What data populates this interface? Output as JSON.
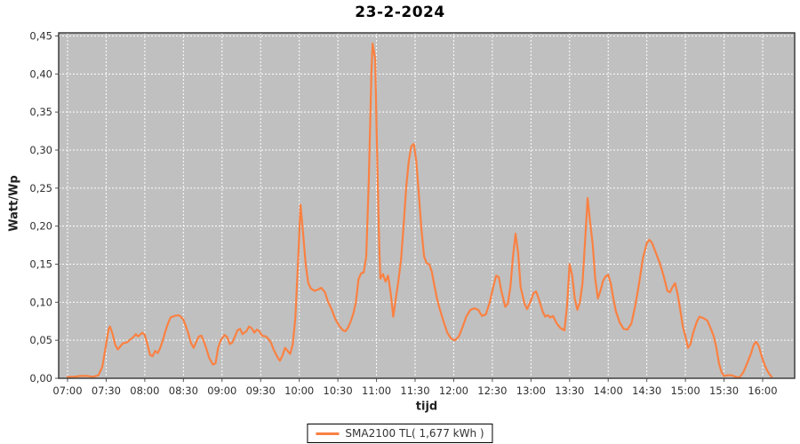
{
  "title": "23-2-2024",
  "legend": {
    "label": "SMA2100 TL( 1,677 kWh )"
  },
  "colors": {
    "series": "#fa8142",
    "plot_background": "#c0c0c0",
    "gridline": "#ffffff",
    "plot_border": "#333333",
    "tick_mark": "#555555",
    "tick_label": "#2f2f2f",
    "outer_background": "#ffffff"
  },
  "chart_data": {
    "type": "line",
    "title": "23-2-2024",
    "xlabel": "tijd",
    "ylabel": "Watt/Wp",
    "ylim": [
      0.0,
      0.45
    ],
    "grid": true,
    "legend_position": "bottom",
    "x_ticks": [
      "07:00",
      "07:30",
      "08:00",
      "08:30",
      "09:00",
      "09:30",
      "10:00",
      "10:30",
      "11:00",
      "11:30",
      "12:00",
      "12:30",
      "13:00",
      "13:30",
      "14:00",
      "14:30",
      "15:00",
      "15:30",
      "16:00"
    ],
    "y_ticks": [
      0.0,
      0.05,
      0.1,
      0.15,
      0.2,
      0.25,
      0.3,
      0.35,
      0.4,
      0.45
    ],
    "y_tick_labels": [
      "0,00",
      "0,05",
      "0,10",
      "0,15",
      "0,20",
      "0,25",
      "0,30",
      "0,35",
      "0,40",
      "0,45"
    ],
    "series": [
      {
        "name": "SMA2100 TL( 1,677 kWh )",
        "color": "#fa8142",
        "points": [
          [
            "07:00",
            0.002
          ],
          [
            "07:05",
            0.002
          ],
          [
            "07:10",
            0.003
          ],
          [
            "07:15",
            0.003
          ],
          [
            "07:20",
            0.002
          ],
          [
            "07:24",
            0.004
          ],
          [
            "07:27",
            0.015
          ],
          [
            "07:30",
            0.045
          ],
          [
            "07:32",
            0.065
          ],
          [
            "07:33",
            0.068
          ],
          [
            "07:35",
            0.058
          ],
          [
            "07:37",
            0.044
          ],
          [
            "07:39",
            0.038
          ],
          [
            "07:41",
            0.042
          ],
          [
            "07:43",
            0.046
          ],
          [
            "07:46",
            0.047
          ],
          [
            "07:48",
            0.05
          ],
          [
            "07:51",
            0.054
          ],
          [
            "07:53",
            0.058
          ],
          [
            "07:55",
            0.055
          ],
          [
            "07:58",
            0.06
          ],
          [
            "08:00",
            0.057
          ],
          [
            "08:02",
            0.045
          ],
          [
            "08:04",
            0.031
          ],
          [
            "08:06",
            0.029
          ],
          [
            "08:08",
            0.036
          ],
          [
            "08:10",
            0.033
          ],
          [
            "08:12",
            0.04
          ],
          [
            "08:14",
            0.05
          ],
          [
            "08:16",
            0.062
          ],
          [
            "08:18",
            0.072
          ],
          [
            "08:20",
            0.08
          ],
          [
            "08:23",
            0.082
          ],
          [
            "08:26",
            0.083
          ],
          [
            "08:28",
            0.081
          ],
          [
            "08:30",
            0.077
          ],
          [
            "08:32",
            0.068
          ],
          [
            "08:34",
            0.058
          ],
          [
            "08:36",
            0.046
          ],
          [
            "08:38",
            0.04
          ],
          [
            "08:40",
            0.048
          ],
          [
            "08:42",
            0.055
          ],
          [
            "08:44",
            0.056
          ],
          [
            "08:46",
            0.048
          ],
          [
            "08:48",
            0.038
          ],
          [
            "08:50",
            0.027
          ],
          [
            "08:53",
            0.018
          ],
          [
            "08:55",
            0.02
          ],
          [
            "08:57",
            0.04
          ],
          [
            "08:59",
            0.05
          ],
          [
            "09:02",
            0.057
          ],
          [
            "09:04",
            0.054
          ],
          [
            "09:06",
            0.045
          ],
          [
            "09:08",
            0.047
          ],
          [
            "09:10",
            0.055
          ],
          [
            "09:12",
            0.063
          ],
          [
            "09:14",
            0.065
          ],
          [
            "09:16",
            0.058
          ],
          [
            "09:19",
            0.062
          ],
          [
            "09:21",
            0.068
          ],
          [
            "09:23",
            0.066
          ],
          [
            "09:25",
            0.06
          ],
          [
            "09:27",
            0.064
          ],
          [
            "09:29",
            0.062
          ],
          [
            "09:31",
            0.056
          ],
          [
            "09:34",
            0.055
          ],
          [
            "09:36",
            0.052
          ],
          [
            "09:38",
            0.047
          ],
          [
            "09:40",
            0.038
          ],
          [
            "09:43",
            0.028
          ],
          [
            "09:45",
            0.023
          ],
          [
            "09:47",
            0.03
          ],
          [
            "09:49",
            0.04
          ],
          [
            "09:51",
            0.036
          ],
          [
            "09:53",
            0.032
          ],
          [
            "09:55",
            0.045
          ],
          [
            "09:57",
            0.08
          ],
          [
            "09:59",
            0.15
          ],
          [
            "10:01",
            0.228
          ],
          [
            "10:03",
            0.19
          ],
          [
            "10:05",
            0.15
          ],
          [
            "10:07",
            0.125
          ],
          [
            "10:09",
            0.118
          ],
          [
            "10:12",
            0.115
          ],
          [
            "10:15",
            0.117
          ],
          [
            "10:17",
            0.119
          ],
          [
            "10:20",
            0.113
          ],
          [
            "10:22",
            0.102
          ],
          [
            "10:25",
            0.091
          ],
          [
            "10:28",
            0.078
          ],
          [
            "10:31",
            0.069
          ],
          [
            "10:34",
            0.063
          ],
          [
            "10:36",
            0.062
          ],
          [
            "10:38",
            0.067
          ],
          [
            "10:40",
            0.075
          ],
          [
            "10:42",
            0.085
          ],
          [
            "10:44",
            0.1
          ],
          [
            "10:46",
            0.13
          ],
          [
            "10:48",
            0.138
          ],
          [
            "10:50",
            0.139
          ],
          [
            "10:52",
            0.16
          ],
          [
            "10:54",
            0.26
          ],
          [
            "10:56",
            0.4
          ],
          [
            "10:57",
            0.44
          ],
          [
            "10:59",
            0.42
          ],
          [
            "11:00",
            0.33
          ],
          [
            "11:02",
            0.18
          ],
          [
            "11:03",
            0.131
          ],
          [
            "11:05",
            0.137
          ],
          [
            "11:07",
            0.127
          ],
          [
            "11:09",
            0.135
          ],
          [
            "11:11",
            0.112
          ],
          [
            "11:13",
            0.081
          ],
          [
            "11:15",
            0.105
          ],
          [
            "11:17",
            0.128
          ],
          [
            "11:19",
            0.155
          ],
          [
            "11:21",
            0.2
          ],
          [
            "11:23",
            0.25
          ],
          [
            "11:25",
            0.285
          ],
          [
            "11:27",
            0.305
          ],
          [
            "11:29",
            0.308
          ],
          [
            "11:31",
            0.285
          ],
          [
            "11:33",
            0.24
          ],
          [
            "11:35",
            0.195
          ],
          [
            "11:37",
            0.16
          ],
          [
            "11:39",
            0.151
          ],
          [
            "11:41",
            0.15
          ],
          [
            "11:43",
            0.14
          ],
          [
            "11:45",
            0.122
          ],
          [
            "11:47",
            0.105
          ],
          [
            "11:49",
            0.092
          ],
          [
            "11:52",
            0.075
          ],
          [
            "11:55",
            0.06
          ],
          [
            "11:58",
            0.052
          ],
          [
            "12:01",
            0.05
          ],
          [
            "12:04",
            0.055
          ],
          [
            "12:07",
            0.068
          ],
          [
            "12:10",
            0.082
          ],
          [
            "12:13",
            0.09
          ],
          [
            "12:16",
            0.092
          ],
          [
            "12:19",
            0.09
          ],
          [
            "12:22",
            0.082
          ],
          [
            "12:25",
            0.084
          ],
          [
            "12:28",
            0.1
          ],
          [
            "12:31",
            0.122
          ],
          [
            "12:33",
            0.135
          ],
          [
            "12:35",
            0.133
          ],
          [
            "12:37",
            0.115
          ],
          [
            "12:40",
            0.094
          ],
          [
            "12:42",
            0.098
          ],
          [
            "12:44",
            0.12
          ],
          [
            "12:46",
            0.16
          ],
          [
            "12:48",
            0.19
          ],
          [
            "12:50",
            0.165
          ],
          [
            "12:52",
            0.12
          ],
          [
            "12:55",
            0.098
          ],
          [
            "12:57",
            0.091
          ],
          [
            "13:00",
            0.102
          ],
          [
            "13:02",
            0.112
          ],
          [
            "13:04",
            0.114
          ],
          [
            "13:06",
            0.105
          ],
          [
            "13:09",
            0.088
          ],
          [
            "13:11",
            0.081
          ],
          [
            "13:13",
            0.083
          ],
          [
            "13:15",
            0.08
          ],
          [
            "13:17",
            0.082
          ],
          [
            "13:20",
            0.072
          ],
          [
            "13:23",
            0.066
          ],
          [
            "13:26",
            0.063
          ],
          [
            "13:28",
            0.095
          ],
          [
            "13:30",
            0.15
          ],
          [
            "13:32",
            0.135
          ],
          [
            "13:34",
            0.105
          ],
          [
            "13:36",
            0.09
          ],
          [
            "13:38",
            0.1
          ],
          [
            "13:40",
            0.125
          ],
          [
            "13:42",
            0.18
          ],
          [
            "13:44",
            0.237
          ],
          [
            "13:46",
            0.205
          ],
          [
            "13:48",
            0.176
          ],
          [
            "13:50",
            0.13
          ],
          [
            "13:52",
            0.105
          ],
          [
            "13:54",
            0.115
          ],
          [
            "13:56",
            0.128
          ],
          [
            "13:58",
            0.134
          ],
          [
            "14:00",
            0.136
          ],
          [
            "14:02",
            0.125
          ],
          [
            "14:04",
            0.105
          ],
          [
            "14:06",
            0.088
          ],
          [
            "14:09",
            0.073
          ],
          [
            "14:12",
            0.065
          ],
          [
            "14:15",
            0.064
          ],
          [
            "14:18",
            0.072
          ],
          [
            "14:21",
            0.095
          ],
          [
            "14:24",
            0.125
          ],
          [
            "14:27",
            0.158
          ],
          [
            "14:30",
            0.178
          ],
          [
            "14:32",
            0.182
          ],
          [
            "14:34",
            0.178
          ],
          [
            "14:37",
            0.165
          ],
          [
            "14:40",
            0.152
          ],
          [
            "14:43",
            0.135
          ],
          [
            "14:46",
            0.115
          ],
          [
            "14:48",
            0.113
          ],
          [
            "14:50",
            0.12
          ],
          [
            "14:52",
            0.125
          ],
          [
            "14:54",
            0.11
          ],
          [
            "14:56",
            0.09
          ],
          [
            "14:58",
            0.068
          ],
          [
            "15:00",
            0.055
          ],
          [
            "15:02",
            0.04
          ],
          [
            "15:04",
            0.045
          ],
          [
            "15:06",
            0.06
          ],
          [
            "15:09",
            0.075
          ],
          [
            "15:11",
            0.081
          ],
          [
            "15:14",
            0.079
          ],
          [
            "15:17",
            0.076
          ],
          [
            "15:20",
            0.064
          ],
          [
            "15:22",
            0.055
          ],
          [
            "15:24",
            0.04
          ],
          [
            "15:26",
            0.02
          ],
          [
            "15:28",
            0.008
          ],
          [
            "15:30",
            0.003
          ],
          [
            "15:33",
            0.004
          ],
          [
            "15:36",
            0.004
          ],
          [
            "15:39",
            0.002
          ],
          [
            "15:42",
            0.001
          ],
          [
            "15:45",
            0.008
          ],
          [
            "15:48",
            0.02
          ],
          [
            "15:51",
            0.033
          ],
          [
            "15:53",
            0.044
          ],
          [
            "15:55",
            0.048
          ],
          [
            "15:57",
            0.042
          ],
          [
            "15:59",
            0.03
          ],
          [
            "16:01",
            0.02
          ],
          [
            "16:03",
            0.012
          ],
          [
            "16:05",
            0.006
          ],
          [
            "16:07",
            0.002
          ]
        ]
      }
    ]
  }
}
